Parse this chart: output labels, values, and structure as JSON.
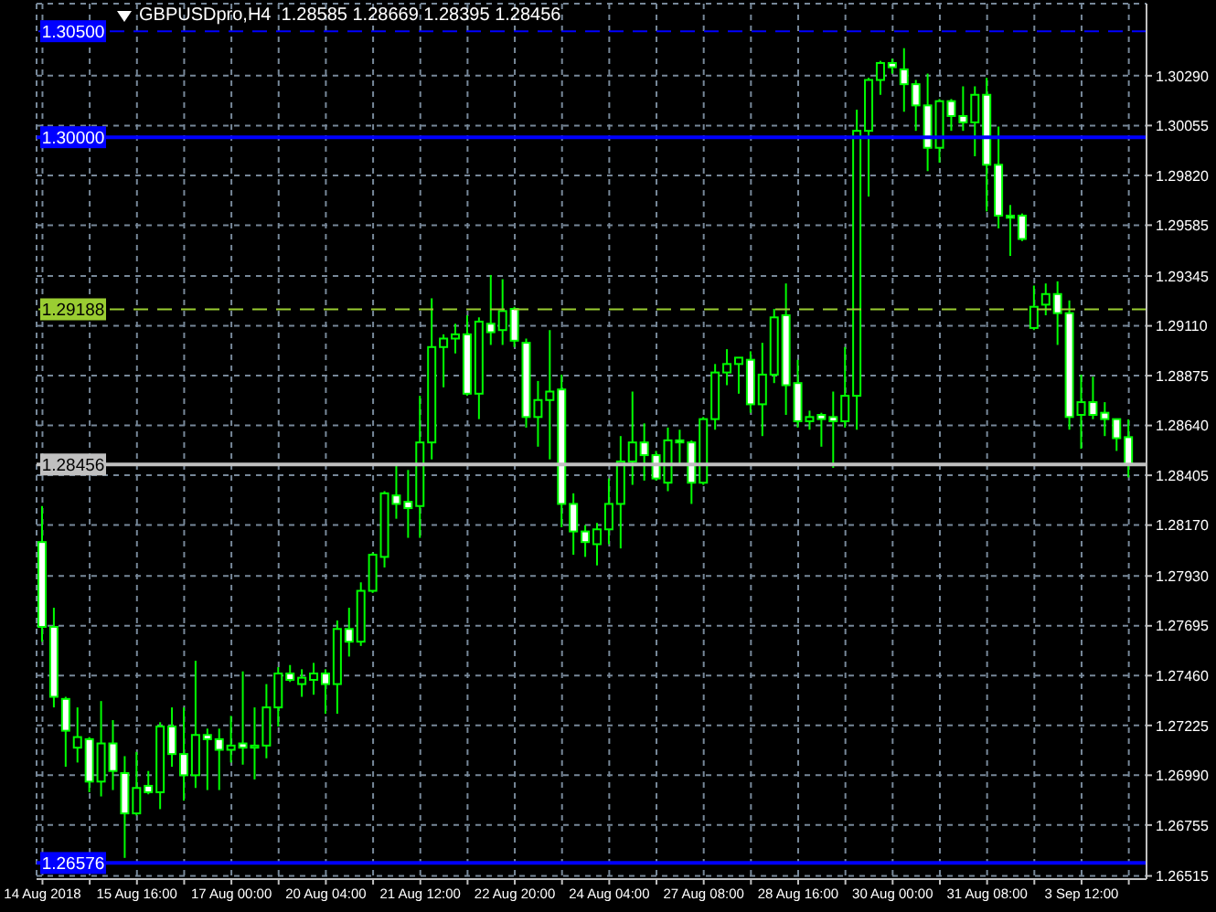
{
  "chart_data": {
    "type": "candlestick",
    "title": "GBPUSDpro,H4  1.28585 1.28669 1.28395 1.28456",
    "color": "#00ff00",
    "grid": true,
    "ylim": [
      1.265,
      1.3063
    ],
    "yticks": [
      1.26515,
      1.26755,
      {
        "value": 1.2699,
        "label": "1.26990"
      },
      1.27225,
      {
        "value": 1.2746,
        "label": "1.27460"
      },
      1.27695,
      {
        "value": 1.2793,
        "label": "1.27930"
      },
      {
        "value": 1.2817,
        "label": "1.28170"
      },
      1.28405,
      {
        "value": 1.2864,
        "label": "1.28640"
      },
      1.28875,
      {
        "value": 1.2911,
        "label": "1.29110"
      },
      1.29345,
      1.29585,
      {
        "value": 1.2982,
        "label": "1.29820"
      },
      1.30055,
      {
        "value": 1.3029,
        "label": "1.30290"
      }
    ],
    "categories": [
      "14 Aug 2018",
      null,
      null,
      null,
      null,
      null,
      null,
      null,
      "15 Aug 16:00",
      null,
      null,
      null,
      null,
      null,
      null,
      null,
      "17 Aug 00:00",
      null,
      null,
      null,
      null,
      null,
      null,
      null,
      "20 Aug 04:00",
      null,
      null,
      null,
      null,
      null,
      null,
      null,
      "21 Aug 12:00",
      null,
      null,
      null,
      null,
      null,
      null,
      null,
      "22 Aug 20:00",
      null,
      null,
      null,
      null,
      null,
      null,
      null,
      "24 Aug 04:00",
      null,
      null,
      null,
      null,
      null,
      null,
      null,
      "27 Aug 08:00",
      null,
      null,
      null,
      null,
      null,
      null,
      null,
      "28 Aug 16:00",
      null,
      null,
      null,
      null,
      null,
      null,
      null,
      "30 Aug 00:00",
      null,
      null,
      null,
      null,
      null,
      null,
      null,
      "31 Aug 08:00",
      null,
      null,
      null,
      null,
      null,
      null,
      null,
      "3 Sep 12:00",
      null,
      null,
      null,
      null
    ],
    "ohlc": [
      [
        1.2809,
        1.2826,
        1.2762,
        1.2769
      ],
      [
        1.2769,
        1.2778,
        1.2731,
        1.2736
      ],
      [
        1.2735,
        1.2736,
        1.2703,
        1.272
      ],
      [
        1.2712,
        1.2731,
        1.2705,
        1.2717
      ],
      [
        1.2716,
        1.2717,
        1.2691,
        1.2696
      ],
      [
        1.2696,
        1.2734,
        1.2689,
        1.2714
      ],
      [
        1.2714,
        1.2725,
        1.2692,
        1.2701
      ],
      [
        1.27,
        1.2708,
        1.266,
        1.2681
      ],
      [
        1.2681,
        1.271,
        1.268,
        1.2693
      ],
      [
        1.2694,
        1.2701,
        1.269,
        1.2691
      ],
      [
        1.2691,
        1.2724,
        1.2683,
        1.2722
      ],
      [
        1.2722,
        1.2731,
        1.2703,
        1.2709
      ],
      [
        1.2709,
        1.2731,
        1.2687,
        1.2699
      ],
      [
        1.2699,
        1.2753,
        1.2693,
        1.2718
      ],
      [
        1.2718,
        1.2721,
        1.2692,
        1.2716
      ],
      [
        1.2716,
        1.2721,
        1.2692,
        1.2711
      ],
      [
        1.2711,
        1.2727,
        1.2705,
        1.2713
      ],
      [
        1.2714,
        1.2748,
        1.2704,
        1.2712
      ],
      [
        1.2712,
        1.2731,
        1.2697,
        1.2713
      ],
      [
        1.2713,
        1.2742,
        1.2707,
        1.2731
      ],
      [
        1.2731,
        1.275,
        1.2722,
        1.2747
      ],
      [
        1.2747,
        1.2751,
        1.2743,
        1.2744
      ],
      [
        1.2742,
        1.2749,
        1.2736,
        1.2745
      ],
      [
        1.2744,
        1.2752,
        1.2737,
        1.2747
      ],
      [
        1.2747,
        1.2749,
        1.2728,
        1.2742
      ],
      [
        1.2742,
        1.2772,
        1.2728,
        1.2768
      ],
      [
        1.2768,
        1.2778,
        1.2755,
        1.2762
      ],
      [
        1.2762,
        1.279,
        1.276,
        1.2786
      ],
      [
        1.2786,
        1.2804,
        1.2785,
        1.2803
      ],
      [
        1.2802,
        1.2833,
        1.2797,
        1.2832
      ],
      [
        1.2831,
        1.2845,
        1.282,
        1.2827
      ],
      [
        1.2828,
        1.2843,
        1.2811,
        1.2825
      ],
      [
        1.2826,
        1.2878,
        1.2811,
        1.2856
      ],
      [
        1.2856,
        1.2924,
        1.2848,
        1.2901
      ],
      [
        1.2901,
        1.2907,
        1.2882,
        1.2905
      ],
      [
        1.2905,
        1.2912,
        1.2898,
        1.2907
      ],
      [
        1.2907,
        1.2916,
        1.2878,
        1.2879
      ],
      [
        1.2879,
        1.2915,
        1.2867,
        1.2913
      ],
      [
        1.2912,
        1.2935,
        1.2902,
        1.2908
      ],
      [
        1.2909,
        1.2933,
        1.2902,
        1.2918
      ],
      [
        1.2919,
        1.292,
        1.2901,
        1.2904
      ],
      [
        1.2903,
        1.2905,
        1.2863,
        1.2868
      ],
      [
        1.2868,
        1.2885,
        1.2854,
        1.2876
      ],
      [
        1.2876,
        1.2909,
        1.2848,
        1.288
      ],
      [
        1.2881,
        1.2888,
        1.2816,
        1.2827
      ],
      [
        1.2827,
        1.2832,
        1.2803,
        1.2814
      ],
      [
        1.2814,
        1.2817,
        1.2802,
        1.2809
      ],
      [
        1.2808,
        1.2818,
        1.2798,
        1.2815
      ],
      [
        1.2815,
        1.2839,
        1.2808,
        1.2827
      ],
      [
        1.2827,
        1.2859,
        1.2806,
        1.2847
      ],
      [
        1.2847,
        1.288,
        1.2836,
        1.2856
      ],
      [
        1.2856,
        1.2865,
        1.2838,
        1.285
      ],
      [
        1.285,
        1.2852,
        1.2838,
        1.2839
      ],
      [
        1.2837,
        1.2863,
        1.2833,
        1.2857
      ],
      [
        1.2857,
        1.2862,
        1.2845,
        1.2856
      ],
      [
        1.2856,
        1.2857,
        1.2827,
        1.2837
      ],
      [
        1.2837,
        1.2868,
        1.2836,
        1.2867
      ],
      [
        1.2867,
        1.2893,
        1.2862,
        1.2889
      ],
      [
        1.2889,
        1.29,
        1.2883,
        1.2893
      ],
      [
        1.2893,
        1.2896,
        1.2879,
        1.2896
      ],
      [
        1.2895,
        1.2899,
        1.287,
        1.2874
      ],
      [
        1.2874,
        1.2903,
        1.2859,
        1.2888
      ],
      [
        1.2888,
        1.2919,
        1.2884,
        1.2915
      ],
      [
        1.2916,
        1.2931,
        1.2869,
        1.2883
      ],
      [
        1.2884,
        1.2895,
        1.2863,
        1.2866
      ],
      [
        1.2866,
        1.2871,
        1.2862,
        1.2868
      ],
      [
        1.2869,
        1.287,
        1.2854,
        1.2867
      ],
      [
        1.2868,
        1.288,
        1.2844,
        1.2866
      ],
      [
        1.2866,
        1.2901,
        1.2863,
        1.2878
      ],
      [
        1.2878,
        1.3013,
        1.2862,
        1.3003
      ],
      [
        1.3003,
        1.3028,
        1.2972,
        1.3027
      ],
      [
        1.3027,
        1.3036,
        1.302,
        1.3035
      ],
      [
        1.3035,
        1.3037,
        1.303,
        1.3033
      ],
      [
        1.3032,
        1.3042,
        1.3012,
        1.3025
      ],
      [
        1.3025,
        1.3027,
        1.3003,
        1.3015
      ],
      [
        1.3015,
        1.303,
        1.2984,
        1.2995
      ],
      [
        1.2995,
        1.3018,
        1.2988,
        1.3017
      ],
      [
        1.3017,
        1.3018,
        1.3003,
        1.301
      ],
      [
        1.301,
        1.3024,
        1.3003,
        1.3007
      ],
      [
        1.3007,
        1.3024,
        1.2991,
        1.302
      ],
      [
        1.302,
        1.3028,
        1.2965,
        1.2987
      ],
      [
        1.2987,
        1.3005,
        1.2957,
        1.2963
      ],
      [
        1.2963,
        1.2968,
        1.2944,
        1.2962
      ],
      [
        1.2963,
        1.2964,
        1.2951,
        1.2952
      ],
      [
        1.291,
        1.293,
        1.2909,
        1.292
      ],
      [
        1.2921,
        1.2931,
        1.2916,
        1.2926
      ],
      [
        1.2926,
        1.2932,
        1.2902,
        1.2917
      ],
      [
        1.2917,
        1.2923,
        1.2862,
        1.2868
      ],
      [
        1.2869,
        1.2888,
        1.2853,
        1.2875
      ],
      [
        1.2875,
        1.2887,
        1.2867,
        1.2869
      ],
      [
        1.287,
        1.2875,
        1.2859,
        1.2867
      ],
      [
        1.2867,
        1.2867,
        1.2852,
        1.2858
      ],
      [
        1.28585,
        1.28669,
        1.28395,
        1.28456
      ]
    ],
    "ref_lines": [
      {
        "axis": "y",
        "value": 1.305,
        "label": "1.30500",
        "color": "#0000ff",
        "line_style": "dashed"
      },
      {
        "axis": "y",
        "value": 1.3,
        "label": "1.30000",
        "color": "#0000ff",
        "line_style": "solid"
      },
      {
        "axis": "y",
        "value": 1.29188,
        "label": "1.29188",
        "color": "#9acd32",
        "line_style": "dashed"
      },
      {
        "axis": "y",
        "value": 1.28456,
        "label": "1.28456",
        "color": "#c0c0c0",
        "line_style": "solid"
      },
      {
        "axis": "y",
        "value": 1.26576,
        "label": "1.26576",
        "color": "#0000ff",
        "line_style": "solid"
      }
    ]
  }
}
